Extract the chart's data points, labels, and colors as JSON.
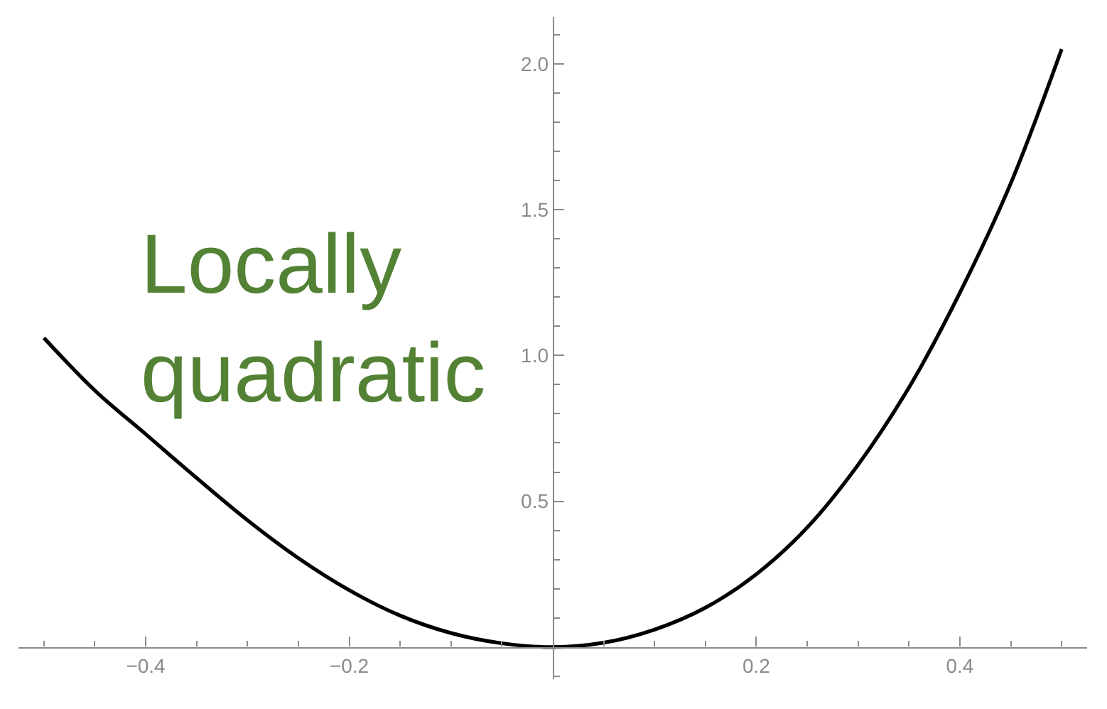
{
  "chart_data": {
    "type": "line",
    "color": "#000000",
    "x": [
      -0.5,
      -0.45,
      -0.4,
      -0.35,
      -0.3,
      -0.25,
      -0.2,
      -0.15,
      -0.1,
      -0.05,
      0,
      0.05,
      0.1,
      0.15,
      0.2,
      0.25,
      0.3,
      0.35,
      0.4,
      0.45,
      0.5
    ],
    "values": [
      1.06,
      0.88,
      0.73,
      0.58,
      0.435,
      0.305,
      0.195,
      0.108,
      0.048,
      0.013,
      0,
      0.015,
      0.06,
      0.135,
      0.25,
      0.41,
      0.625,
      0.89,
      1.215,
      1.59,
      2.05
    ],
    "xlim": [
      -0.525,
      0.525
    ],
    "ylim": [
      -0.11,
      2.16
    ],
    "xticks": [
      {
        "value": -0.5,
        "label": null
      },
      {
        "value": -0.45,
        "label": null
      },
      {
        "value": -0.4,
        "label": "−0.4"
      },
      {
        "value": -0.35,
        "label": null
      },
      {
        "value": -0.3,
        "label": null
      },
      {
        "value": -0.25,
        "label": null
      },
      {
        "value": -0.2,
        "label": "−0.2"
      },
      {
        "value": -0.15,
        "label": null
      },
      {
        "value": -0.1,
        "label": null
      },
      {
        "value": -0.05,
        "label": null
      },
      {
        "value": 0.05,
        "label": null
      },
      {
        "value": 0.1,
        "label": null
      },
      {
        "value": 0.15,
        "label": null
      },
      {
        "value": 0.2,
        "label": "0.2"
      },
      {
        "value": 0.25,
        "label": null
      },
      {
        "value": 0.3,
        "label": null
      },
      {
        "value": 0.35,
        "label": null
      },
      {
        "value": 0.4,
        "label": "0.4"
      },
      {
        "value": 0.45,
        "label": null
      },
      {
        "value": 0.5,
        "label": null
      }
    ],
    "yticks": [
      {
        "value": -0.1,
        "label": null
      },
      {
        "value": 0.1,
        "label": null
      },
      {
        "value": 0.2,
        "label": null
      },
      {
        "value": 0.3,
        "label": null
      },
      {
        "value": 0.4,
        "label": null
      },
      0.5,
      {
        "value": 0.6,
        "label": null
      },
      {
        "value": 0.7,
        "label": null
      },
      {
        "value": 0.8,
        "label": null
      },
      {
        "value": 0.9,
        "label": null
      },
      {
        "value": 1,
        "label": "1.0"
      },
      {
        "value": 1.1,
        "label": null
      },
      {
        "value": 1.2,
        "label": null
      },
      {
        "value": 1.3,
        "label": null
      },
      {
        "value": 1.4,
        "label": null
      },
      1.5,
      {
        "value": 1.6,
        "label": null
      },
      {
        "value": 1.7,
        "label": null
      },
      {
        "value": 1.8,
        "label": null
      },
      {
        "value": 1.9,
        "label": null
      },
      {
        "value": 2,
        "label": "2.0"
      },
      {
        "value": 2.1,
        "label": null
      }
    ],
    "annotations": [
      "Locally\nquadratic"
    ]
  }
}
